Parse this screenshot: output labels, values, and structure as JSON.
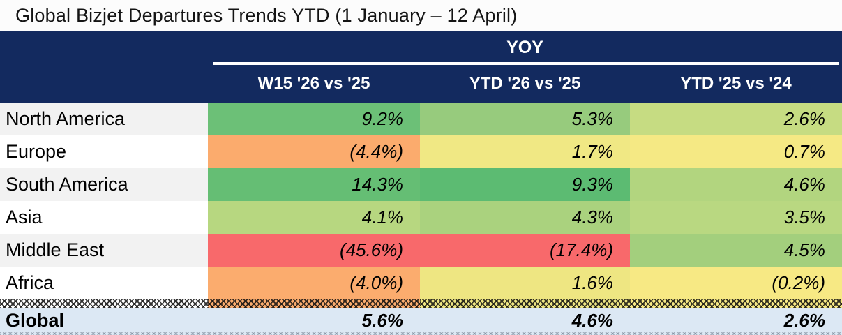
{
  "title": "Global Bizjet Departures Trends YTD (1 January – 12 April)",
  "colors": {
    "header_bg": "#132a5f",
    "header_text": "#ffffff",
    "title_bg": "#fcfcfc",
    "title_text": "#141414",
    "total_row_bg": "#dce8f4",
    "value_text": "#000000",
    "alt_label_bg": "#f2f2f2",
    "scale_green": "#63be7b",
    "scale_yellow": "#ffeb84",
    "scale_red": "#f8696b"
  },
  "table": {
    "group_header": "YOY",
    "columns": [
      "W15 '26 vs '25",
      "YTD '26 vs '25",
      "YTD '25 vs '24"
    ],
    "rows": [
      {
        "region": "North America",
        "label_bg": "#f2f2f2",
        "values": [
          "9.2%",
          "5.3%",
          "2.6%"
        ],
        "colors": [
          "#6cc077",
          "#97cb7d",
          "#c6dc82"
        ]
      },
      {
        "region": "Europe",
        "label_bg": "#ffffff",
        "values": [
          "(4.4%)",
          "1.7%",
          "0.7%"
        ],
        "colors": [
          "#fbab6d",
          "#f0e884",
          "#f5e984"
        ]
      },
      {
        "region": "South America",
        "label_bg": "#f2f2f2",
        "values": [
          "14.3%",
          "9.3%",
          "4.6%"
        ],
        "colors": [
          "#65be74",
          "#5cbb72",
          "#b2d57f"
        ]
      },
      {
        "region": "Asia",
        "label_bg": "#ffffff",
        "values": [
          "4.1%",
          "4.3%",
          "3.5%"
        ],
        "colors": [
          "#b7d780",
          "#aad27e",
          "#b9d881"
        ]
      },
      {
        "region": "Middle East",
        "label_bg": "#f2f2f2",
        "values": [
          "(45.6%)",
          "(17.4%)",
          "4.5%"
        ],
        "colors": [
          "#f8696b",
          "#f8696b",
          "#a3cf7d"
        ]
      },
      {
        "region": "Africa",
        "label_bg": "#ffffff",
        "values": [
          "(4.0%)",
          "1.6%",
          "(0.2%)"
        ],
        "colors": [
          "#fbac6e",
          "#eee682",
          "#f7e984"
        ]
      }
    ],
    "total_row": {
      "region": "Global",
      "values": [
        "5.6%",
        "4.6%",
        "2.6%"
      ],
      "bg": "#dce8f4"
    },
    "hatch_segments": [
      "#ffffff",
      "#fbac6e",
      "#eee682",
      "#f7e984"
    ]
  },
  "chart_data": {
    "type": "heatmap",
    "title": "Global Bizjet Departures Trends YTD (1 January – 12 April)",
    "group_header": "YOY",
    "columns": [
      "W15 '26 vs '25",
      "YTD '26 vs '25",
      "YTD '25 vs '24"
    ],
    "rows": [
      "North America",
      "Europe",
      "South America",
      "Asia",
      "Middle East",
      "Africa",
      "Global"
    ],
    "values_pct": [
      [
        9.2,
        5.3,
        2.6
      ],
      [
        -4.4,
        1.7,
        0.7
      ],
      [
        14.3,
        9.3,
        4.6
      ],
      [
        4.1,
        4.3,
        3.5
      ],
      [
        -45.6,
        -17.4,
        4.5
      ],
      [
        -4.0,
        1.6,
        -0.2
      ],
      [
        5.6,
        4.6,
        2.6
      ]
    ],
    "notes": "Negative values displayed in parentheses; cells shaded on a red–yellow–green conditional-formatting scale per column.",
    "legend_position": "none",
    "grid": false
  }
}
